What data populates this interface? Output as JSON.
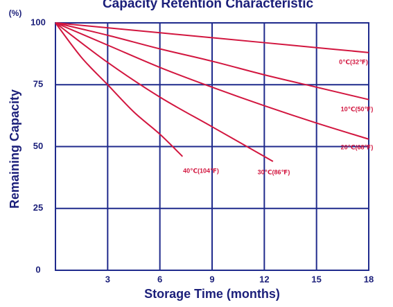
{
  "chart_data": {
    "type": "line",
    "title": "Capacity Retention Characteristic",
    "y_unit": "(%)",
    "xlabel": "Storage Time (months)",
    "ylabel": "Remaining Capacity",
    "xlim": [
      0,
      18
    ],
    "xticks": [
      3,
      6,
      9,
      12,
      15,
      18
    ],
    "ylim": [
      0,
      100
    ],
    "yticks": [
      0,
      25,
      50,
      75,
      100
    ],
    "grid": true,
    "grid_color": "#1f2a8c",
    "series": [
      {
        "name": "0℃(32℉)",
        "color": "#d2163f",
        "x": [
          0,
          3,
          6,
          9,
          12,
          15,
          18
        ],
        "values": [
          100,
          98,
          96,
          94,
          92,
          90,
          88
        ]
      },
      {
        "name": "10℃(50℉)",
        "color": "#d2163f",
        "x": [
          0,
          3,
          6,
          9,
          12,
          15,
          18
        ],
        "values": [
          100,
          95,
          89.5,
          84.5,
          79,
          74,
          69
        ]
      },
      {
        "name": "20℃(68℉)",
        "color": "#d2163f",
        "x": [
          0,
          3,
          6,
          9,
          12,
          15,
          18
        ],
        "values": [
          100,
          91,
          82,
          74,
          66.5,
          59.5,
          53
        ]
      },
      {
        "name": "30℃(86℉)",
        "color": "#d2163f",
        "x": [
          0,
          3,
          6,
          9,
          12,
          12.5
        ],
        "values": [
          100,
          84,
          70,
          58,
          46,
          44
        ]
      },
      {
        "name": "40℃(104℉)",
        "color": "#d2163f",
        "x": [
          0,
          1.5,
          3,
          4.5,
          6,
          7.3
        ],
        "values": [
          100,
          86,
          75,
          64,
          55,
          46
        ]
      }
    ]
  }
}
